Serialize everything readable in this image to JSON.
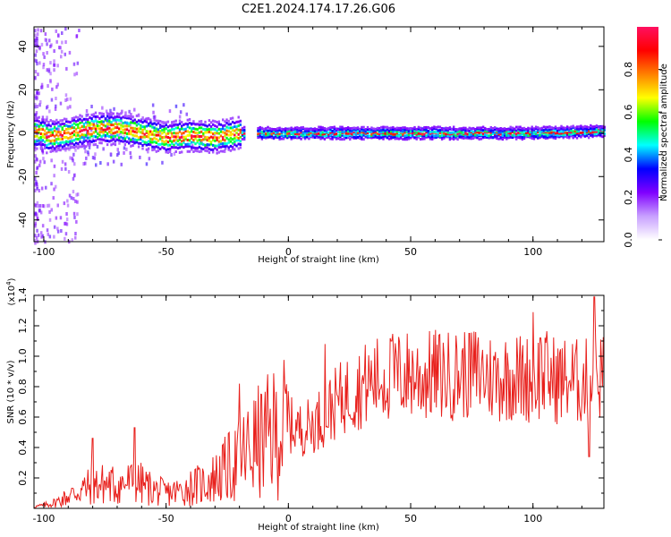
{
  "figure_title": "C2E1.2024.174.17.26.G06",
  "chart_data": [
    {
      "type": "heatmap",
      "title": "",
      "xlabel": "Height of straight line (km)",
      "ylabel": "Frequency (Hz)",
      "xlim": [
        -104,
        129
      ],
      "ylim": [
        -50,
        49
      ],
      "x_ticks": [
        -100,
        -50,
        0,
        50,
        100
      ],
      "x_tick_labels": [
        "-100",
        "-50",
        "0",
        "50",
        "100"
      ],
      "y_ticks": [
        -40,
        -20,
        0,
        20,
        40
      ],
      "y_tick_labels": [
        "-40",
        "-20",
        "0",
        "20",
        "40"
      ],
      "colorbar": {
        "label": "Normalized spectral amplitude",
        "range": [
          0,
          1
        ],
        "ticks": [
          0.0,
          0.2,
          0.4,
          0.6,
          0.8
        ],
        "tick_labels": [
          "0.0",
          "0.2",
          "0.4",
          "0.6",
          "0.8"
        ],
        "colormap": [
          "#ffffff",
          "#c8a0ff",
          "#8000ff",
          "#0000ff",
          "#00ffff",
          "#00ff00",
          "#ffff00",
          "#ff8000",
          "#ff0000",
          "#ff1060"
        ]
      },
      "band_center_hz": [
        {
          "x": -100,
          "f": -2
        },
        {
          "x": -90,
          "f": 0
        },
        {
          "x": -80,
          "f": 2
        },
        {
          "x": -70,
          "f": 2
        },
        {
          "x": -60,
          "f": 0
        },
        {
          "x": -50,
          "f": -2
        },
        {
          "x": -40,
          "f": -1
        },
        {
          "x": -30,
          "f": -2
        },
        {
          "x": -20,
          "f": 0
        },
        {
          "x": 0,
          "f": 0
        },
        {
          "x": 50,
          "f": 0
        },
        {
          "x": 100,
          "f": 0
        },
        {
          "x": 129,
          "f": 1
        }
      ]
    },
    {
      "type": "line",
      "title": "",
      "xlabel": "Height of straight line (km)",
      "ylabel": "SNR (10 * v/v)",
      "y_multiplier_label": "(x10",
      "y_multiplier_exp": "4",
      "xlim": [
        -104,
        129
      ],
      "ylim": [
        0,
        1.4
      ],
      "x_ticks": [
        -100,
        -50,
        0,
        50,
        100
      ],
      "x_tick_labels": [
        "-100",
        "-50",
        "0",
        "50",
        "100"
      ],
      "y_ticks": [
        0.2,
        0.4,
        0.6,
        0.8,
        1.0,
        1.2,
        1.4
      ],
      "y_tick_labels": [
        "0.2",
        "0.4",
        "0.6",
        "0.8",
        "1.0",
        "1.2",
        "1.4"
      ],
      "line_color": "#e8201c",
      "series": [
        {
          "x": [
            -104,
            -100,
            -95,
            -90,
            -85,
            -80,
            -75,
            -70,
            -65,
            -60,
            -55,
            -50,
            -45,
            -40,
            -35,
            -30,
            -25,
            -20,
            -15,
            -10,
            -5,
            0,
            5,
            10,
            15,
            20,
            25,
            30,
            35,
            40,
            45,
            50,
            55,
            60,
            65,
            70,
            75,
            80,
            85,
            90,
            95,
            100,
            105,
            110,
            115,
            120,
            125,
            129
          ],
          "values": [
            0.01,
            0.02,
            0.04,
            0.08,
            0.12,
            0.15,
            0.16,
            0.15,
            0.17,
            0.16,
            0.12,
            0.1,
            0.11,
            0.14,
            0.16,
            0.2,
            0.26,
            0.32,
            0.4,
            0.45,
            0.5,
            0.55,
            0.52,
            0.55,
            0.62,
            0.7,
            0.76,
            0.8,
            0.84,
            0.86,
            0.87,
            0.88,
            0.86,
            0.88,
            0.87,
            0.88,
            0.9,
            0.88,
            0.85,
            0.87,
            0.86,
            0.85,
            0.88,
            0.84,
            0.85,
            0.82,
            0.86,
            0.88
          ]
        }
      ],
      "peaks": [
        {
          "x": -80,
          "v": 0.46
        },
        {
          "x": -63,
          "v": 0.53
        },
        {
          "x": -20,
          "v": 0.82
        },
        {
          "x": 15,
          "v": 1.08
        },
        {
          "x": 42,
          "v": 1.1
        },
        {
          "x": 74,
          "v": 1.15
        },
        {
          "x": 100,
          "v": 1.29
        },
        {
          "x": 103,
          "v": 1.12
        },
        {
          "x": 125,
          "v": 1.39
        },
        {
          "x": 123,
          "v": 0.34
        }
      ]
    }
  ]
}
